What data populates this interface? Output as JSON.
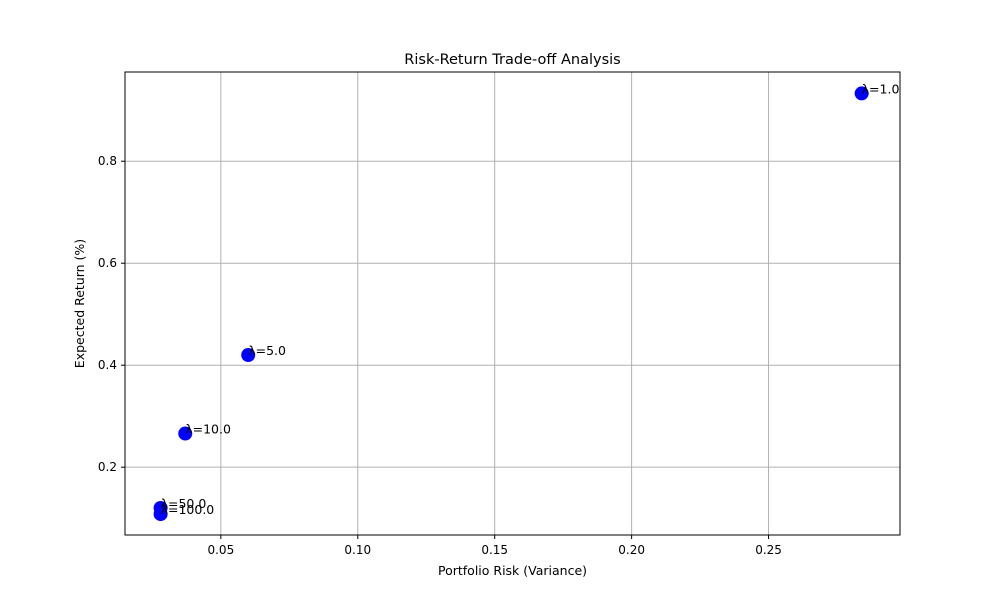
{
  "chart_data": {
    "type": "scatter",
    "title": "Risk-Return Trade-off Analysis",
    "xlabel": "Portfolio Risk (Variance)",
    "ylabel": "Expected Return (%)",
    "xlim": [
      0.015,
      0.298
    ],
    "ylim": [
      0.067,
      0.975
    ],
    "x_ticks": [
      0.05,
      0.1,
      0.15,
      0.2,
      0.25
    ],
    "x_tick_labels": [
      "0.05",
      "0.10",
      "0.15",
      "0.20",
      "0.25"
    ],
    "y_ticks": [
      0.2,
      0.4,
      0.6,
      0.8
    ],
    "y_tick_labels": [
      "0.2",
      "0.4",
      "0.6",
      "0.8"
    ],
    "grid": true,
    "marker_color": "#0000ff",
    "points": [
      {
        "label": "λ=1.0",
        "x": 0.284,
        "y": 0.933
      },
      {
        "label": "λ=5.0",
        "x": 0.06,
        "y": 0.42
      },
      {
        "label": "λ=10.0",
        "x": 0.037,
        "y": 0.266
      },
      {
        "label": "λ=50.0",
        "x": 0.028,
        "y": 0.12
      },
      {
        "label": "λ=100.0",
        "x": 0.028,
        "y": 0.108
      }
    ]
  }
}
